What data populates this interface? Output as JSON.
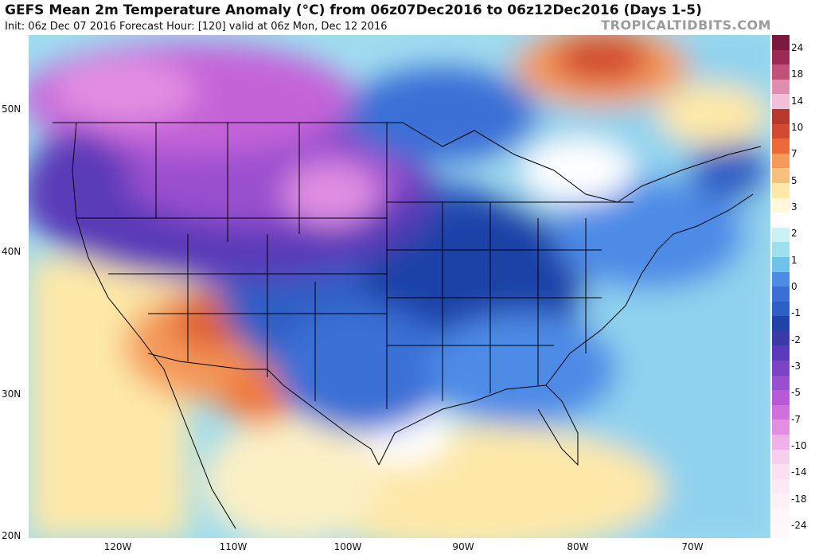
{
  "header": {
    "title": "GEFS Mean 2m Temperature Anomaly (°C) from 06z07Dec2016 to 06z12Dec2016 (Days 1-5)",
    "subtitle": "Init: 06z Dec 07 2016   Forecast Hour: [120]   valid at 06z Mon, Dec 12 2016",
    "brand": "TROPICALTIDBITS.COM"
  },
  "map": {
    "lat_labels": [
      "50N",
      "40N",
      "30N",
      "20N"
    ],
    "lon_labels": [
      "120W",
      "110W",
      "100W",
      "90W",
      "80W",
      "70W"
    ],
    "extent": {
      "lon": [
        -128,
        -64
      ],
      "lat": [
        20,
        55
      ]
    },
    "anomaly_regions": [
      {
        "name": "canadian-prairies-cold",
        "value": -12,
        "color": "#a64fcf"
      },
      {
        "name": "northern-plains-cold",
        "value": -14,
        "color": "#c463d8"
      },
      {
        "name": "central-us-cold",
        "value": -5,
        "color": "#2d5fc4"
      },
      {
        "name": "southeast-us-cold",
        "value": -3,
        "color": "#4d8be6"
      },
      {
        "name": "southwest-us-warm",
        "value": 3,
        "color": "#f07a3c"
      },
      {
        "name": "quebec-warm",
        "value": 5,
        "color": "#ea6a3a"
      },
      {
        "name": "gulf-mexico-warm",
        "value": 1,
        "color": "#fde8a8"
      }
    ]
  },
  "colorbar": {
    "labels": [
      "24",
      "18",
      "14",
      "10",
      "7",
      "5",
      "3",
      "2",
      "1",
      "0",
      "-1",
      "-2",
      "-3",
      "-5",
      "-7",
      "-10",
      "-14",
      "-18",
      "-24"
    ],
    "colors": [
      "#7a1a3c",
      "#9c2a55",
      "#c0517a",
      "#e08eb0",
      "#f2c0d8",
      "#b53a2a",
      "#d24a2f",
      "#ea6a3a",
      "#f49a5a",
      "#f8c07e",
      "#fde8a8",
      "#fff8dc",
      "#ffffff",
      "#c9f2f6",
      "#9ee0ef",
      "#6fc2ea",
      "#4d8be6",
      "#3a6fd6",
      "#2d5fc4",
      "#1f43a8",
      "#3a3aa8",
      "#5a3ab8",
      "#7a44c4",
      "#9a4fcf",
      "#b85ad6",
      "#d070dc",
      "#e38ee2",
      "#f0b0ea",
      "#f6cfef",
      "#fae0f2",
      "#fce9f4",
      "#fdf0f6",
      "#fef6fa",
      "#fff9fc"
    ]
  }
}
